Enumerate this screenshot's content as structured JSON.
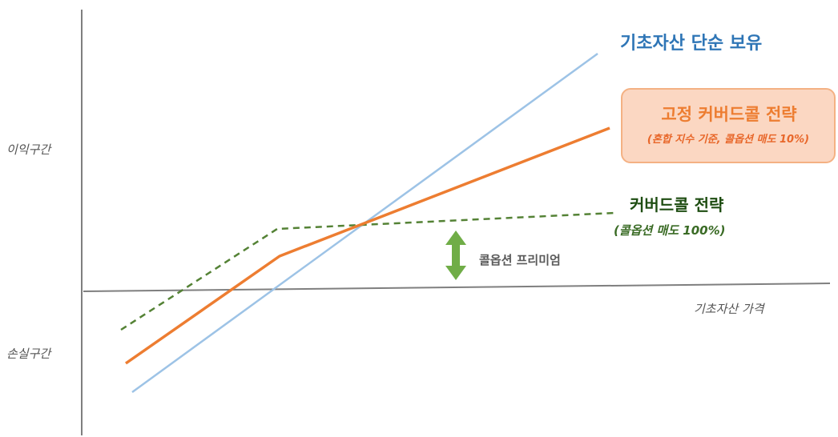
{
  "labels": {
    "profit_zone": "이익구간",
    "loss_zone": "손실구간",
    "underlying_price": "기초자산 가격",
    "call_premium": "콜옵션 프리미엄"
  },
  "series": {
    "underlying": {
      "name": "기초자산 단순 보유",
      "color": "#9dc3e6"
    },
    "fixed_covered_call": {
      "name": "고정 커버드콜 전략",
      "note": "(혼합 지수 기준, 콜옵션 매도 10%)",
      "color": "#ed7d31"
    },
    "covered_call": {
      "name": "커버드콜 전략",
      "note": "(콜옵션 매도 100%)",
      "color": "#548235"
    }
  },
  "colors": {
    "axis": "#7f7f7f",
    "arrow": "#70ad47"
  },
  "icons": {
    "premium_arrow": "double-headed-vertical-arrow"
  }
}
